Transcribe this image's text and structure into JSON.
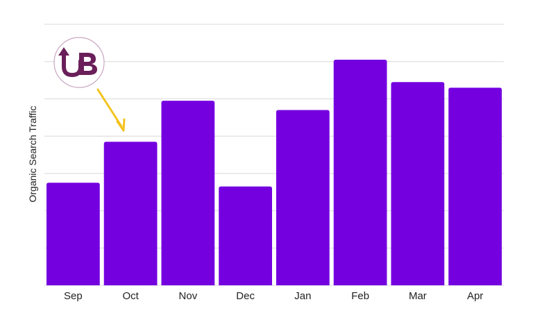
{
  "chart_data": {
    "type": "bar",
    "title": "",
    "xlabel": "",
    "ylabel": "Organic Search Traffic",
    "categories": [
      "Sep",
      "Oct",
      "Nov",
      "Dec",
      "Jan",
      "Feb",
      "Mar",
      "Apr"
    ],
    "values": [
      2.75,
      3.85,
      4.95,
      2.65,
      4.7,
      6.05,
      5.45,
      5.3
    ],
    "ylim": [
      0,
      7
    ],
    "grid": true,
    "legend": "none",
    "bar_color": "#7400e0",
    "grid_color": "#d8d8d8"
  },
  "annotation": {
    "logo_icon": "ub-logo-icon",
    "logo_color": "#6a1f5a",
    "logo_border_color": "#c9a6c1",
    "arrow_color": "#f3c31e",
    "arrow_target": "Oct"
  }
}
